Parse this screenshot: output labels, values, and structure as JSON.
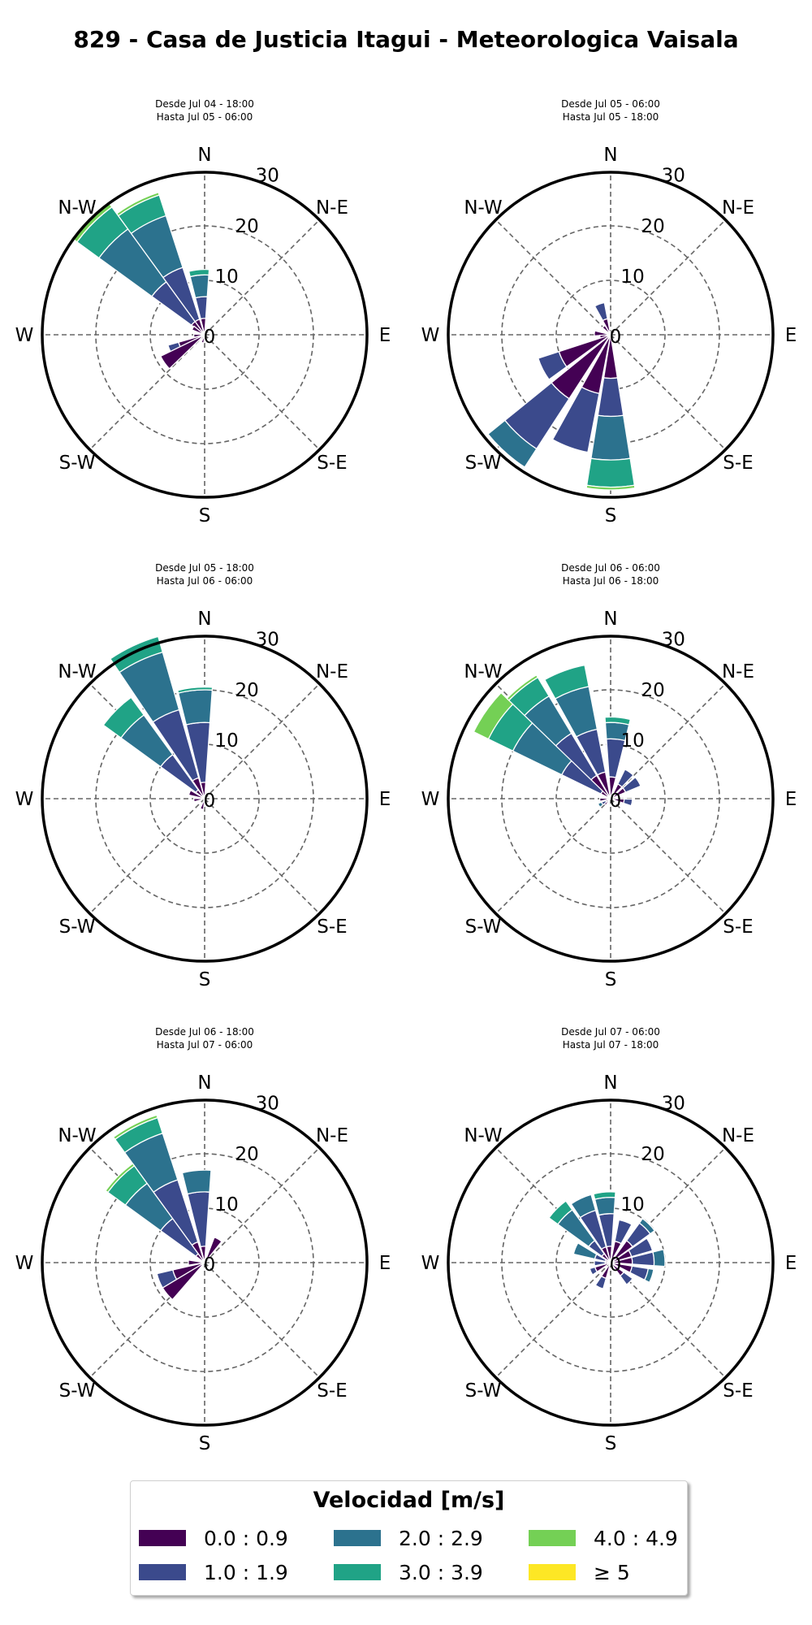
{
  "title": "829 - Casa de Justicia Itagui - Meteorologica Vaisala",
  "direction_labels": [
    "N",
    "N-E",
    "E",
    "S-E",
    "S",
    "S-W",
    "W",
    "N-W"
  ],
  "radial_ticks": [
    "0",
    "10",
    "20",
    "30"
  ],
  "radial_max": 30,
  "legend": {
    "title": "Velocidad [m/s]",
    "items": [
      {
        "label": "0.0 : 0.9",
        "color": "#440154"
      },
      {
        "label": "1.0 : 1.9",
        "color": "#3b4a8c"
      },
      {
        "label": "2.0 : 2.9",
        "color": "#2c728e"
      },
      {
        "label": "3.0 : 3.9",
        "color": "#20a386"
      },
      {
        "label": "4.0 : 4.9",
        "color": "#74d055"
      },
      {
        "label": "≥ 5",
        "color": "#fde725"
      }
    ]
  },
  "chart_data": [
    {
      "type": "windrose",
      "subtitle_line1": "Desde Jul 04 - 18:00",
      "subtitle_line2": "Hasta Jul 05 - 06:00",
      "rlim": [
        0,
        30
      ],
      "bars": [
        {
          "dir": 355,
          "stack": [
            0,
            3,
            7,
            11,
            12
          ]
        },
        {
          "dir": 333,
          "stack": [
            0,
            3,
            13,
            23,
            27,
            27.5
          ]
        },
        {
          "dir": 315,
          "stack": [
            0,
            3,
            12,
            24,
            29,
            30
          ]
        },
        {
          "dir": 300,
          "stack": [
            0,
            2.5
          ]
        },
        {
          "dir": 265,
          "stack": [
            0,
            2
          ]
        },
        {
          "dir": 245,
          "stack": [
            0,
            5,
            7
          ]
        },
        {
          "dir": 235,
          "stack": [
            0,
            9
          ]
        },
        {
          "dir": 195,
          "stack": [
            0,
            1.5
          ]
        }
      ]
    },
    {
      "type": "windrose",
      "subtitle_line1": "Desde Jul 05 - 06:00",
      "subtitle_line2": "Hasta Jul 05 - 18:00",
      "rlim": [
        0,
        30
      ],
      "bars": [
        {
          "dir": 340,
          "stack": [
            0,
            3,
            6
          ]
        },
        {
          "dir": 320,
          "stack": [
            0,
            2
          ]
        },
        {
          "dir": 275,
          "stack": [
            0,
            3
          ]
        },
        {
          "dir": 258,
          "stack": [
            0,
            2
          ]
        },
        {
          "dir": 243,
          "stack": [
            0,
            10,
            14
          ]
        },
        {
          "dir": 222,
          "stack": [
            0,
            14,
            25,
            29
          ]
        },
        {
          "dir": 200,
          "stack": [
            0,
            11,
            22
          ]
        },
        {
          "dir": 180,
          "stack": [
            0,
            8,
            15,
            23,
            28,
            28.5
          ]
        }
      ]
    },
    {
      "type": "windrose",
      "subtitle_line1": "Desde Jul 05 - 18:00",
      "subtitle_line2": "Hasta Jul 06 - 06:00",
      "rlim": [
        0,
        30
      ],
      "bars": [
        {
          "dir": 355,
          "stack": [
            0,
            3,
            14,
            20,
            20.5
          ]
        },
        {
          "dir": 335,
          "stack": [
            0,
            4,
            17,
            28,
            31
          ]
        },
        {
          "dir": 315,
          "stack": [
            0,
            2,
            10,
            19,
            23
          ]
        },
        {
          "dir": 292,
          "stack": [
            0,
            3
          ]
        },
        {
          "dir": 262,
          "stack": [
            0,
            2
          ]
        },
        {
          "dir": 195,
          "stack": [
            0,
            2
          ]
        }
      ]
    },
    {
      "type": "windrose",
      "subtitle_line1": "Desde Jul 06 - 06:00",
      "subtitle_line2": "Hasta Jul 06 - 18:00",
      "rlim": [
        0,
        30
      ],
      "bars": [
        {
          "dir": 5,
          "stack": [
            0,
            4,
            11,
            14,
            15
          ]
        },
        {
          "dir": 35,
          "stack": [
            0,
            3,
            6
          ]
        },
        {
          "dir": 58,
          "stack": [
            0,
            3,
            6
          ]
        },
        {
          "dir": 100,
          "stack": [
            0,
            2.5,
            4
          ]
        },
        {
          "dir": 340,
          "stack": [
            0,
            5,
            13,
            21,
            25
          ]
        },
        {
          "dir": 320,
          "stack": [
            0,
            5,
            14,
            22,
            26,
            26.5
          ]
        },
        {
          "dir": 305,
          "stack": [
            0,
            2,
            10,
            20,
            25,
            28
          ]
        },
        {
          "dir": 265,
          "stack": [
            0,
            2
          ]
        },
        {
          "dir": 225,
          "stack": [
            0,
            1.5
          ]
        },
        {
          "dir": 240,
          "stack": [
            0,
            1,
            1.8,
            2.5
          ]
        }
      ]
    },
    {
      "type": "windrose",
      "subtitle_line1": "Desde Jul 06 - 18:00",
      "subtitle_line2": "Hasta Jul 07 - 06:00",
      "rlim": [
        0,
        30
      ],
      "bars": [
        {
          "dir": 355,
          "stack": [
            0,
            3,
            13,
            17
          ]
        },
        {
          "dir": 30,
          "stack": [
            0,
            5
          ]
        },
        {
          "dir": 333,
          "stack": [
            0,
            4,
            16,
            25,
            28,
            28.5
          ]
        },
        {
          "dir": 315,
          "stack": [
            0,
            2,
            10,
            18,
            22,
            22.5
          ]
        },
        {
          "dir": 248,
          "stack": [
            0,
            6,
            9
          ]
        },
        {
          "dir": 230,
          "stack": [
            0,
            9
          ]
        },
        {
          "dir": 270,
          "stack": [
            0,
            3
          ]
        }
      ]
    },
    {
      "type": "windrose",
      "subtitle_line1": "Desde Jul 07 - 06:00",
      "subtitle_line2": "Hasta Jul 07 - 18:00",
      "rlim": [
        0,
        30
      ],
      "bars": [
        {
          "dir": 355,
          "stack": [
            0,
            3,
            9,
            12,
            13
          ]
        },
        {
          "dir": 20,
          "stack": [
            0,
            4,
            8
          ]
        },
        {
          "dir": 45,
          "stack": [
            0,
            5,
            9,
            10
          ]
        },
        {
          "dir": 65,
          "stack": [
            0,
            4,
            8
          ]
        },
        {
          "dir": 85,
          "stack": [
            0,
            4,
            8,
            10
          ]
        },
        {
          "dir": 108,
          "stack": [
            0,
            4,
            7,
            8
          ]
        },
        {
          "dir": 135,
          "stack": [
            0,
            3,
            5
          ]
        },
        {
          "dir": 335,
          "stack": [
            0,
            3,
            10,
            13
          ]
        },
        {
          "dir": 315,
          "stack": [
            0,
            2,
            5,
            12,
            14
          ]
        },
        {
          "dir": 292,
          "stack": [
            0,
            1,
            3,
            7
          ]
        },
        {
          "dir": 268,
          "stack": [
            0,
            1,
            3
          ]
        },
        {
          "dir": 245,
          "stack": [
            0,
            3,
            4
          ]
        },
        {
          "dir": 205,
          "stack": [
            0,
            3,
            5
          ]
        }
      ]
    }
  ]
}
